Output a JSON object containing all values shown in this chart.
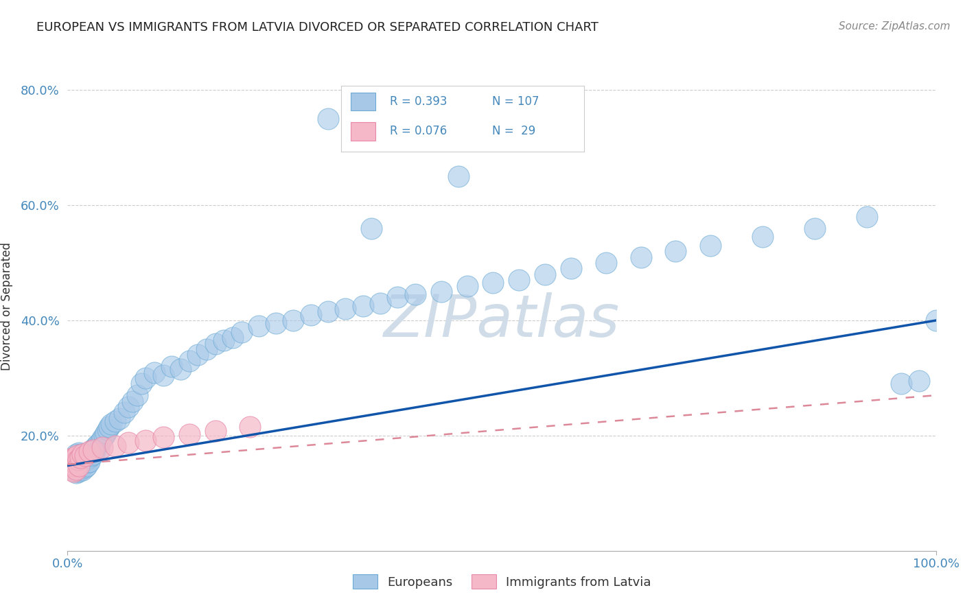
{
  "title": "EUROPEAN VS IMMIGRANTS FROM LATVIA DIVORCED OR SEPARATED CORRELATION CHART",
  "source": "Source: ZipAtlas.com",
  "ylabel": "Divorced or Separated",
  "xlim": [
    0.0,
    1.0
  ],
  "ylim": [
    0.0,
    0.85
  ],
  "y_tick_values": [
    0.2,
    0.4,
    0.6,
    0.8
  ],
  "blue_color": "#a8c8e8",
  "blue_edge": "#6aaad4",
  "pink_color": "#f4b8c8",
  "pink_edge": "#e888a8",
  "line_blue": "#1155aa",
  "line_pink": "#dd8899",
  "watermark_color": "#d0dde8",
  "background_color": "#ffffff",
  "grid_color": "#cccccc",
  "eu_x": [
    0.005,
    0.006,
    0.007,
    0.007,
    0.008,
    0.008,
    0.009,
    0.009,
    0.01,
    0.01,
    0.01,
    0.01,
    0.01,
    0.011,
    0.011,
    0.012,
    0.012,
    0.012,
    0.013,
    0.013,
    0.013,
    0.014,
    0.014,
    0.015,
    0.015,
    0.015,
    0.016,
    0.016,
    0.017,
    0.017,
    0.018,
    0.018,
    0.019,
    0.02,
    0.02,
    0.021,
    0.022,
    0.022,
    0.023,
    0.024,
    0.025,
    0.025,
    0.026,
    0.027,
    0.028,
    0.03,
    0.031,
    0.032,
    0.033,
    0.035,
    0.036,
    0.038,
    0.04,
    0.042,
    0.044,
    0.046,
    0.048,
    0.05,
    0.055,
    0.06,
    0.065,
    0.07,
    0.075,
    0.08,
    0.085,
    0.09,
    0.1,
    0.11,
    0.12,
    0.13,
    0.14,
    0.15,
    0.16,
    0.17,
    0.18,
    0.19,
    0.2,
    0.22,
    0.24,
    0.26,
    0.28,
    0.3,
    0.32,
    0.34,
    0.36,
    0.38,
    0.4,
    0.43,
    0.46,
    0.49,
    0.52,
    0.55,
    0.58,
    0.62,
    0.66,
    0.7,
    0.74,
    0.8,
    0.86,
    0.92,
    0.96,
    0.98,
    1.0,
    0.5,
    0.45,
    0.35,
    0.3
  ],
  "eu_y": [
    0.155,
    0.148,
    0.16,
    0.142,
    0.152,
    0.145,
    0.158,
    0.14,
    0.15,
    0.162,
    0.135,
    0.168,
    0.145,
    0.155,
    0.138,
    0.148,
    0.165,
    0.142,
    0.152,
    0.138,
    0.17,
    0.145,
    0.158,
    0.152,
    0.142,
    0.168,
    0.148,
    0.16,
    0.155,
    0.14,
    0.162,
    0.148,
    0.155,
    0.152,
    0.145,
    0.162,
    0.148,
    0.158,
    0.168,
    0.155,
    0.162,
    0.155,
    0.17,
    0.165,
    0.175,
    0.168,
    0.172,
    0.178,
    0.182,
    0.185,
    0.175,
    0.19,
    0.195,
    0.2,
    0.205,
    0.21,
    0.215,
    0.22,
    0.225,
    0.23,
    0.24,
    0.25,
    0.26,
    0.27,
    0.29,
    0.3,
    0.31,
    0.305,
    0.32,
    0.315,
    0.33,
    0.34,
    0.35,
    0.36,
    0.365,
    0.37,
    0.38,
    0.39,
    0.395,
    0.4,
    0.41,
    0.415,
    0.42,
    0.425,
    0.43,
    0.44,
    0.445,
    0.45,
    0.46,
    0.465,
    0.47,
    0.48,
    0.49,
    0.5,
    0.51,
    0.52,
    0.53,
    0.545,
    0.56,
    0.58,
    0.29,
    0.295,
    0.4,
    0.72,
    0.65,
    0.56,
    0.75
  ],
  "lv_x": [
    0.003,
    0.004,
    0.005,
    0.005,
    0.006,
    0.006,
    0.007,
    0.007,
    0.008,
    0.008,
    0.009,
    0.01,
    0.01,
    0.011,
    0.012,
    0.013,
    0.015,
    0.017,
    0.02,
    0.025,
    0.03,
    0.04,
    0.055,
    0.07,
    0.09,
    0.11,
    0.14,
    0.17,
    0.21
  ],
  "lv_y": [
    0.155,
    0.145,
    0.16,
    0.14,
    0.152,
    0.148,
    0.158,
    0.138,
    0.162,
    0.148,
    0.155,
    0.15,
    0.142,
    0.165,
    0.158,
    0.148,
    0.162,
    0.168,
    0.165,
    0.172,
    0.175,
    0.18,
    0.182,
    0.188,
    0.192,
    0.198,
    0.202,
    0.208,
    0.215
  ]
}
